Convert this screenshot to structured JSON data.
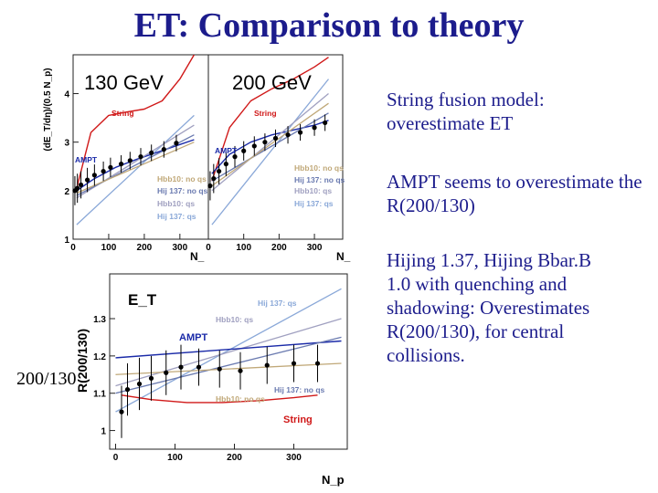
{
  "title": "ET: Comparison to theory",
  "bullets": [
    "String fusion model: overestimate ET",
    "AMPT seems to overestimate the R(200/130)",
    "Hijing 1.37, Hijing Bbar.B 1.0 with quenching and shadowing: Overestimates R(200/130), for central collisions."
  ],
  "colors": {
    "title": "#1c1c8c",
    "string": "#d01818",
    "ampt": "#1a2aa8",
    "hij137": "#8aa8d8",
    "hbb10": "#a0a0c0",
    "hijnoqs": "#6a7ab0",
    "hbbnoqs": "#c0a878"
  },
  "chart_data": [
    {
      "type": "line",
      "title": "",
      "panel_label": "130 GeV",
      "ylabel": "(dE_T/dη)/(0.5 N_p)",
      "xlabel": "N_",
      "xlim": [
        0,
        380
      ],
      "ylim": [
        1,
        4.8
      ],
      "yticks": [
        1,
        2,
        3,
        4
      ],
      "xticks": [
        0,
        100,
        200,
        300
      ],
      "legend": [
        "String",
        "AMPT",
        "Hbb10: no qs",
        "Hij 137: no qs",
        "Hbb10: qs",
        "Hij 137: qs"
      ],
      "series": [
        {
          "name": "String",
          "x": [
            10,
            50,
            100,
            150,
            200,
            250,
            300,
            340
          ],
          "y": [
            2.05,
            3.2,
            3.55,
            3.62,
            3.68,
            3.85,
            4.3,
            4.8
          ]
        },
        {
          "name": "AMPT",
          "x": [
            10,
            60,
            120,
            180,
            240,
            300,
            340
          ],
          "y": [
            2.0,
            2.25,
            2.48,
            2.65,
            2.8,
            2.95,
            3.05
          ]
        },
        {
          "name": "Hij 137: qs",
          "x": [
            10,
            340
          ],
          "y": [
            1.3,
            3.55
          ]
        },
        {
          "name": "Hbb10: qs",
          "x": [
            10,
            340
          ],
          "y": [
            1.85,
            3.35
          ]
        },
        {
          "name": "Hij 137: no qs",
          "x": [
            10,
            340
          ],
          "y": [
            1.9,
            3.15
          ]
        },
        {
          "name": "Hbb10: no qs",
          "x": [
            10,
            340
          ],
          "y": [
            1.95,
            3.0
          ]
        },
        {
          "name": "data",
          "x": [
            5,
            12,
            22,
            40,
            60,
            85,
            105,
            135,
            160,
            190,
            220,
            255,
            290
          ],
          "y": [
            2.0,
            2.05,
            2.12,
            2.22,
            2.32,
            2.4,
            2.48,
            2.55,
            2.62,
            2.7,
            2.78,
            2.85,
            2.98
          ],
          "err": [
            0.3,
            0.3,
            0.28,
            0.25,
            0.22,
            0.2,
            0.2,
            0.18,
            0.18,
            0.18,
            0.17,
            0.17,
            0.17
          ]
        }
      ]
    },
    {
      "type": "line",
      "title": "",
      "panel_label": "200 GeV",
      "xlabel": "N_",
      "xlim": [
        0,
        380
      ],
      "ylim": [
        1,
        4.8
      ],
      "xticks": [
        0,
        100,
        200,
        300
      ],
      "legend": [
        "String",
        "AMPT",
        "Hbb10: no qs",
        "Hij 137: no qs",
        "Hbb10: qs",
        "Hij 137: qs"
      ],
      "series": [
        {
          "name": "String",
          "x": [
            10,
            60,
            120,
            180,
            240,
            300,
            340
          ],
          "y": [
            2.2,
            3.3,
            3.85,
            4.1,
            4.3,
            4.55,
            4.75
          ]
        },
        {
          "name": "AMPT",
          "x": [
            10,
            60,
            120,
            180,
            240,
            300,
            340
          ],
          "y": [
            2.35,
            2.75,
            3.0,
            3.15,
            3.25,
            3.35,
            3.45
          ]
        },
        {
          "name": "Hij 137: qs",
          "x": [
            10,
            340
          ],
          "y": [
            1.3,
            4.3
          ]
        },
        {
          "name": "Hbb10: qs",
          "x": [
            10,
            340
          ],
          "y": [
            2.0,
            4.0
          ]
        },
        {
          "name": "Hij 137: no qs",
          "x": [
            10,
            340
          ],
          "y": [
            2.2,
            3.6
          ]
        },
        {
          "name": "Hbb10: no qs",
          "x": [
            10,
            340
          ],
          "y": [
            2.1,
            3.8
          ]
        },
        {
          "name": "data",
          "x": [
            5,
            15,
            30,
            50,
            75,
            100,
            130,
            160,
            190,
            225,
            260,
            300,
            330
          ],
          "y": [
            2.1,
            2.25,
            2.4,
            2.55,
            2.7,
            2.82,
            2.92,
            3.0,
            3.08,
            3.15,
            3.2,
            3.3,
            3.4
          ],
          "err": [
            0.3,
            0.3,
            0.27,
            0.25,
            0.22,
            0.2,
            0.2,
            0.18,
            0.18,
            0.18,
            0.17,
            0.17,
            0.17
          ]
        }
      ]
    },
    {
      "type": "line",
      "title": "",
      "panel_label": "E_T",
      "ylabel": "R(200/130)",
      "ylabel_outside": "200/130",
      "xlabel": "N_p",
      "xlim": [
        -10,
        390
      ],
      "ylim": [
        0.95,
        1.42
      ],
      "yticks": [
        1,
        1.1,
        1.2,
        1.3
      ],
      "xticks": [
        0,
        100,
        200,
        300
      ],
      "legend": [
        "Hij 137: qs",
        "Hbb10: qs",
        "AMPT",
        "Hij 137: no qs",
        "Hbb10: no qs",
        "String"
      ],
      "series": [
        {
          "name": "Hij 137: qs",
          "x": [
            0,
            380
          ],
          "y": [
            1.05,
            1.38
          ]
        },
        {
          "name": "Hbb10: qs",
          "x": [
            0,
            380
          ],
          "y": [
            1.12,
            1.3
          ]
        },
        {
          "name": "AMPT",
          "x": [
            0,
            380
          ],
          "y": [
            1.195,
            1.24
          ]
        },
        {
          "name": "Hij 137: no qs",
          "x": [
            0,
            380
          ],
          "y": [
            1.1,
            1.25
          ]
        },
        {
          "name": "Hbb10: no qs",
          "x": [
            0,
            380
          ],
          "y": [
            1.15,
            1.18
          ]
        },
        {
          "name": "String",
          "x": [
            10,
            60,
            120,
            180,
            240,
            300,
            340
          ],
          "y": [
            1.095,
            1.083,
            1.075,
            1.075,
            1.08,
            1.088,
            1.095
          ]
        },
        {
          "name": "data",
          "x": [
            10,
            20,
            40,
            60,
            85,
            110,
            140,
            175,
            210,
            255,
            300,
            340
          ],
          "y": [
            1.05,
            1.11,
            1.125,
            1.14,
            1.155,
            1.17,
            1.17,
            1.165,
            1.16,
            1.175,
            1.18,
            1.18
          ],
          "err": [
            0.07,
            0.07,
            0.07,
            0.06,
            0.06,
            0.06,
            0.05,
            0.05,
            0.05,
            0.05,
            0.05,
            0.05
          ]
        }
      ]
    }
  ]
}
